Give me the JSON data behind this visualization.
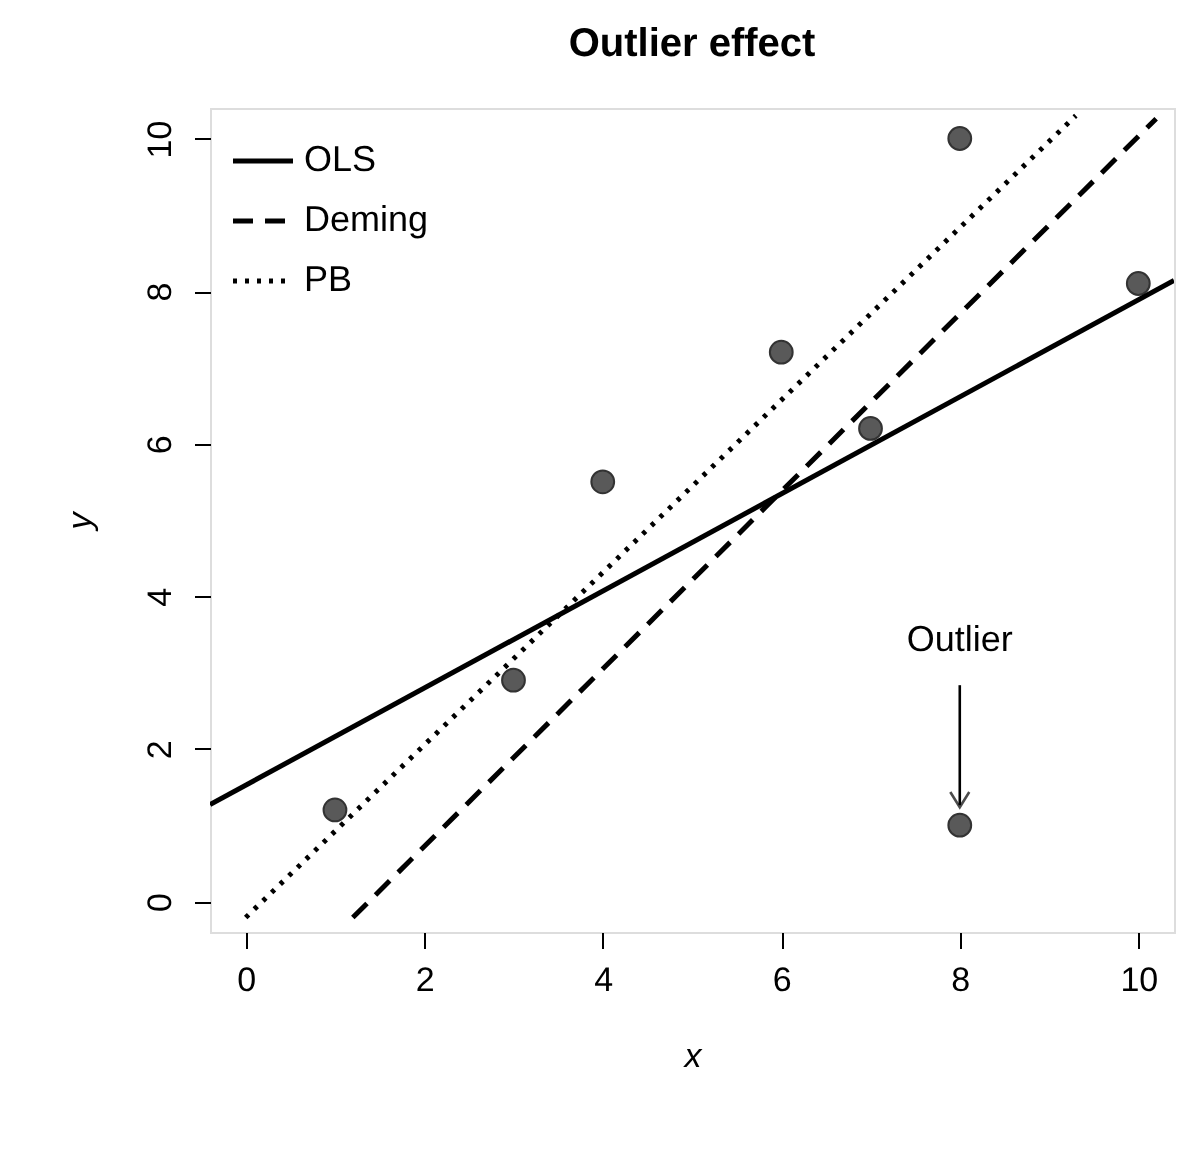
{
  "chart_data": {
    "type": "scatter",
    "title": "Outlier effect",
    "xlabel": "x",
    "ylabel": "y",
    "xlim": [
      -0.4,
      10.4
    ],
    "ylim": [
      -0.4,
      10.4
    ],
    "xticks": [
      0,
      2,
      4,
      6,
      8,
      10
    ],
    "yticks": [
      0,
      2,
      4,
      6,
      8,
      10
    ],
    "grid": false,
    "legend": "top left",
    "series": [
      {
        "color": "#595959",
        "marker": "circle",
        "x": [
          1,
          3,
          4,
          6,
          7,
          8,
          10,
          8
        ],
        "values": [
          1.2,
          2.9,
          5.5,
          7.2,
          6.2,
          10,
          8.1,
          1
        ]
      },
      {
        "type": "line",
        "name": "OLS",
        "color": "#000000",
        "line_style": "solid",
        "x": [
          -0.4,
          10.4
        ],
        "values": [
          1.27,
          8.14
        ]
      },
      {
        "type": "line",
        "name": "Deming",
        "color": "#000000",
        "line_style": "dashed",
        "x": [
          1.2,
          10.2
        ],
        "values": [
          -0.21,
          10.26
        ]
      },
      {
        "type": "line",
        "name": "PB",
        "color": "#000000",
        "line_style": "dotted",
        "x": [
          0,
          9.3
        ],
        "values": [
          -0.21,
          10.3
        ]
      }
    ],
    "annotations": [
      "Outlier"
    ]
  }
}
